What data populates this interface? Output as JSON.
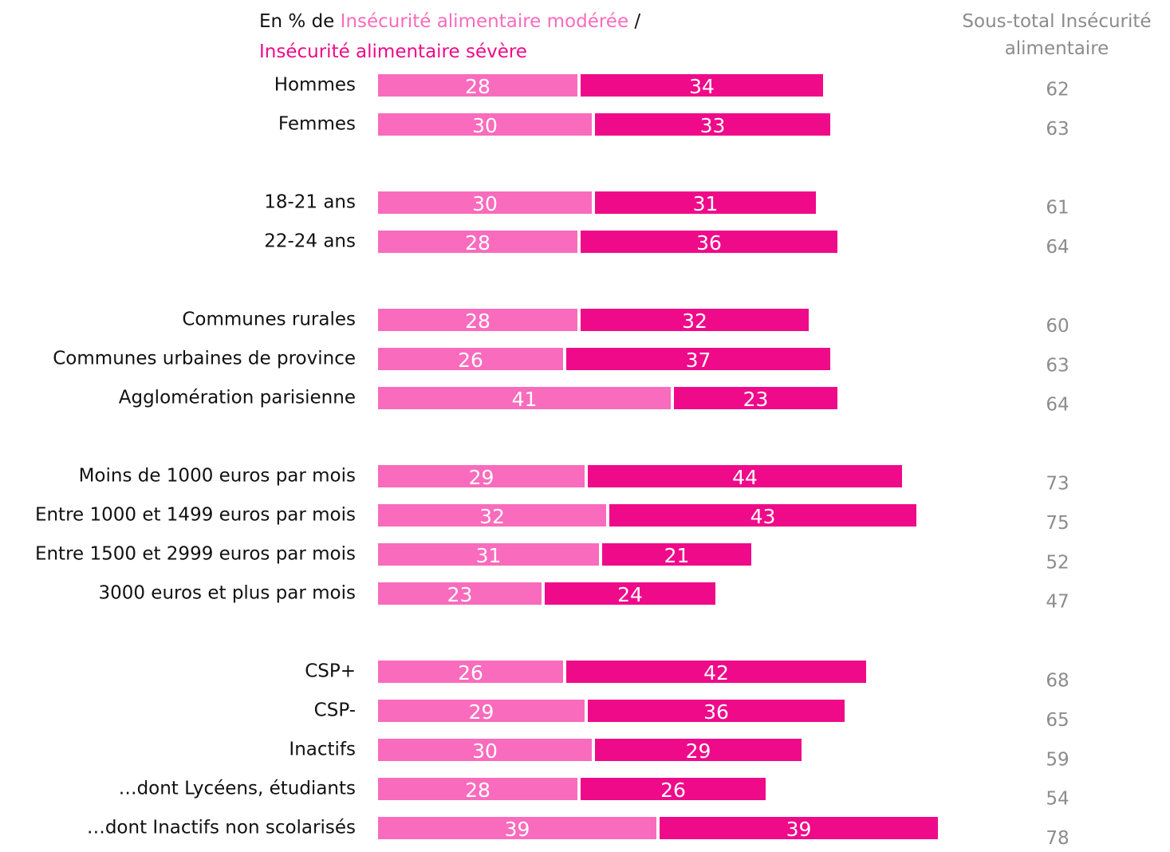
{
  "chart_data": {
    "type": "stacked-bar-horizontal",
    "title_prefix": "En % de",
    "title_separator": "/",
    "categories": [
      "Hommes",
      "Femmes",
      null,
      "18-21 ans",
      "22-24 ans",
      null,
      "Communes rurales",
      "Communes urbaines de province",
      "Agglomération parisienne",
      null,
      "Moins de 1000 euros par mois",
      "Entre 1000 et 1499 euros par mois",
      "Entre 1500 et 2999 euros par mois",
      "3000 euros et plus par mois",
      null,
      "CSP+",
      "CSP-",
      "Inactifs",
      "…dont Lycéens, étudiants",
      "…dont Inactifs non scolarisés"
    ],
    "series": [
      {
        "name": "Insécurité alimentaire modérée",
        "color": "#f96bbd",
        "values": [
          28,
          30,
          null,
          30,
          28,
          null,
          28,
          26,
          41,
          null,
          29,
          32,
          31,
          23,
          null,
          26,
          29,
          30,
          28,
          39
        ]
      },
      {
        "name": "Insécurité alimentaire sévère",
        "color": "#ef0a8a",
        "values": [
          34,
          33,
          null,
          31,
          36,
          null,
          32,
          37,
          23,
          null,
          44,
          43,
          21,
          24,
          null,
          42,
          36,
          29,
          26,
          39
        ]
      }
    ],
    "subtotal": {
      "title": "Sous-total Insécurité alimentaire",
      "values": [
        62,
        63,
        null,
        61,
        64,
        null,
        60,
        63,
        64,
        null,
        73,
        75,
        52,
        47,
        null,
        68,
        65,
        59,
        54,
        78
      ]
    }
  }
}
